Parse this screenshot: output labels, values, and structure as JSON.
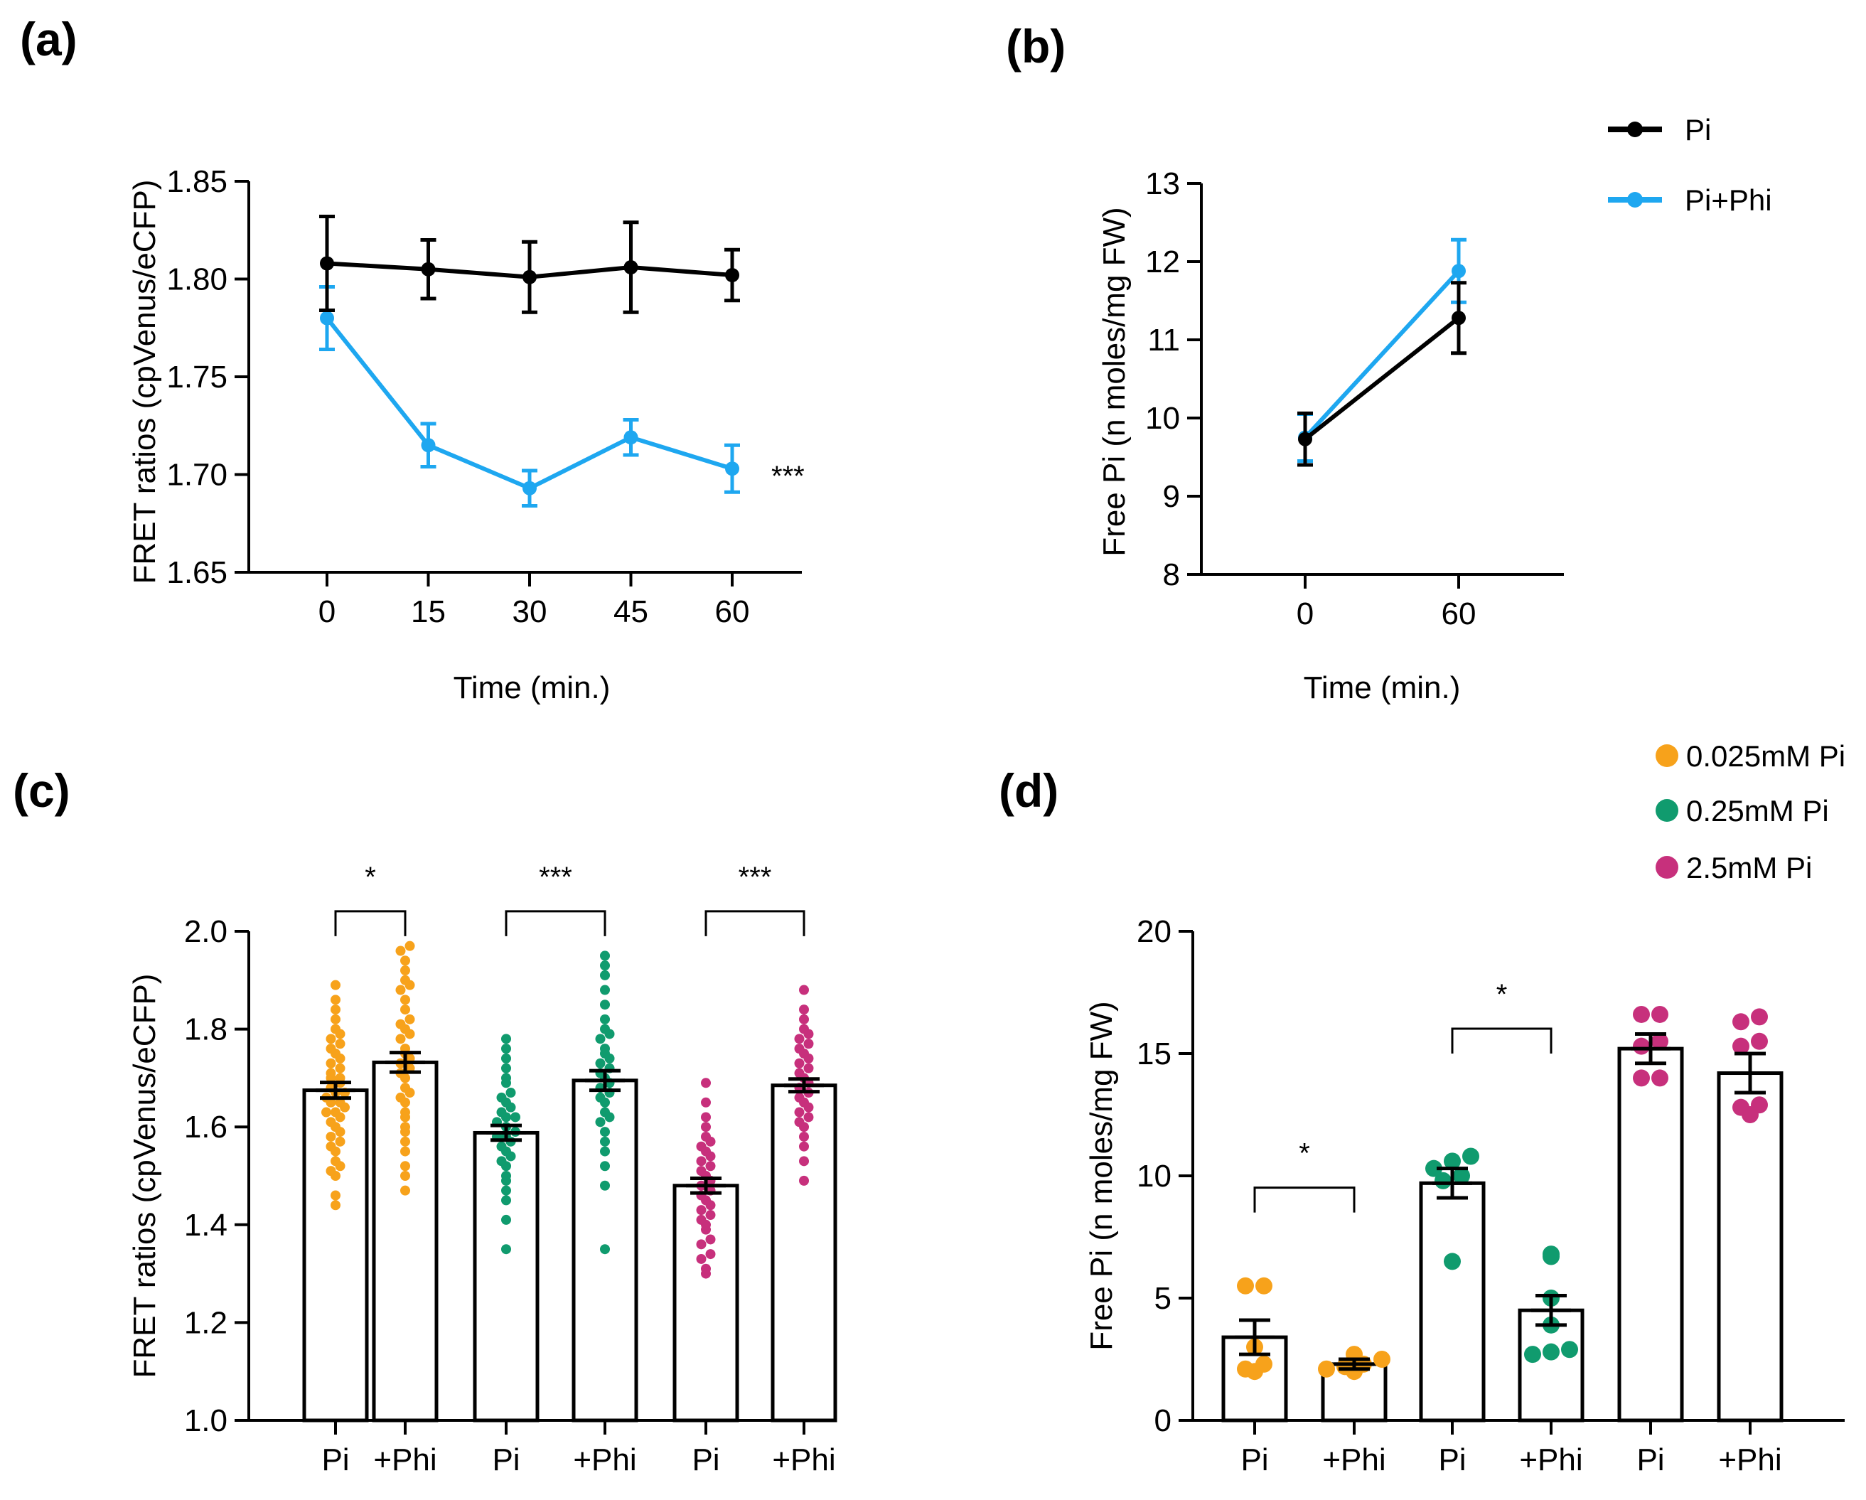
{
  "colors": {
    "pi": "#000000",
    "pi_phi": "#1ea7f0",
    "c0025": "#f7a21b",
    "c025": "#109b6e",
    "c25": "#c7307c",
    "axis": "#000000"
  },
  "chart_data": [
    {
      "panel": "(a)",
      "type": "line",
      "xlabel": "Time (min.)",
      "ylabel": "FRET ratios (cpVenus/eCFP)",
      "x": [
        0,
        15,
        30,
        45,
        60
      ],
      "xticks": [
        "0",
        "15",
        "30",
        "45",
        "60"
      ],
      "ylim": [
        1.65,
        1.85
      ],
      "yticks": [
        "1.65",
        "1.70",
        "1.75",
        "1.80",
        "1.85"
      ],
      "series": [
        {
          "name": "Pi",
          "color": "pi",
          "values": [
            1.808,
            1.805,
            1.801,
            1.806,
            1.802
          ],
          "err": [
            0.024,
            0.015,
            0.018,
            0.023,
            0.013
          ]
        },
        {
          "name": "Pi+Phi",
          "color": "pi_phi",
          "values": [
            1.78,
            1.715,
            1.693,
            1.719,
            1.703
          ],
          "err": [
            0.016,
            0.011,
            0.009,
            0.009,
            0.012
          ]
        }
      ],
      "annotation": "***"
    },
    {
      "panel": "(b)",
      "type": "line",
      "xlabel": "Time (min.)",
      "ylabel": "Free Pi (n moles/mg FW)",
      "x": [
        0,
        60
      ],
      "xticks": [
        "0",
        "60"
      ],
      "ylim": [
        8,
        13
      ],
      "yticks": [
        "8",
        "9",
        "10",
        "11",
        "12",
        "13"
      ],
      "series": [
        {
          "name": "Pi",
          "color": "pi",
          "values": [
            9.73,
            11.28
          ],
          "err": [
            0.33,
            0.45
          ]
        },
        {
          "name": "Pi+Phi",
          "color": "pi_phi",
          "values": [
            9.75,
            11.88
          ],
          "err": [
            0.3,
            0.4
          ]
        }
      ],
      "legend": [
        "Pi",
        "Pi+Phi"
      ]
    },
    {
      "panel": "(c)",
      "type": "bar",
      "ylabel": "FRET ratios (cpVenus/eCFP)",
      "categories": [
        "Pi",
        "+Phi",
        "Pi",
        "+Phi",
        "Pi",
        "+Phi"
      ],
      "ylim": [
        1.0,
        2.0
      ],
      "yticks": [
        "1.0",
        "1.2",
        "1.4",
        "1.6",
        "1.8",
        "2.0"
      ],
      "values": [
        1.675,
        1.732,
        1.588,
        1.695,
        1.48,
        1.685
      ],
      "err": [
        0.016,
        0.02,
        0.015,
        0.02,
        0.015,
        0.013
      ],
      "groups": [
        "c0025",
        "c0025",
        "c025",
        "c025",
        "c25",
        "c25"
      ],
      "points": [
        [
          1.44,
          1.46,
          1.5,
          1.51,
          1.52,
          1.53,
          1.55,
          1.56,
          1.57,
          1.58,
          1.59,
          1.6,
          1.61,
          1.62,
          1.63,
          1.63,
          1.64,
          1.65,
          1.65,
          1.66,
          1.67,
          1.67,
          1.68,
          1.69,
          1.7,
          1.7,
          1.71,
          1.72,
          1.73,
          1.74,
          1.75,
          1.76,
          1.77,
          1.78,
          1.79,
          1.8,
          1.82,
          1.84,
          1.86,
          1.89
        ],
        [
          1.47,
          1.5,
          1.52,
          1.55,
          1.57,
          1.59,
          1.6,
          1.62,
          1.63,
          1.65,
          1.66,
          1.67,
          1.68,
          1.7,
          1.71,
          1.72,
          1.73,
          1.74,
          1.75,
          1.76,
          1.78,
          1.79,
          1.8,
          1.81,
          1.82,
          1.84,
          1.86,
          1.88,
          1.89,
          1.9,
          1.92,
          1.94,
          1.96,
          1.97
        ],
        [
          1.35,
          1.41,
          1.45,
          1.47,
          1.49,
          1.5,
          1.52,
          1.53,
          1.54,
          1.55,
          1.56,
          1.57,
          1.58,
          1.58,
          1.59,
          1.6,
          1.61,
          1.62,
          1.62,
          1.63,
          1.64,
          1.65,
          1.66,
          1.67,
          1.69,
          1.7,
          1.72,
          1.74,
          1.76,
          1.78
        ],
        [
          1.35,
          1.48,
          1.52,
          1.55,
          1.57,
          1.59,
          1.61,
          1.62,
          1.63,
          1.65,
          1.66,
          1.67,
          1.68,
          1.69,
          1.7,
          1.71,
          1.72,
          1.73,
          1.74,
          1.75,
          1.76,
          1.78,
          1.79,
          1.8,
          1.82,
          1.85,
          1.88,
          1.91,
          1.93,
          1.95
        ],
        [
          1.3,
          1.31,
          1.33,
          1.34,
          1.36,
          1.37,
          1.39,
          1.4,
          1.41,
          1.42,
          1.43,
          1.44,
          1.45,
          1.46,
          1.47,
          1.48,
          1.49,
          1.5,
          1.51,
          1.52,
          1.53,
          1.54,
          1.55,
          1.56,
          1.57,
          1.58,
          1.6,
          1.62,
          1.65,
          1.69
        ],
        [
          1.49,
          1.53,
          1.56,
          1.58,
          1.6,
          1.61,
          1.62,
          1.63,
          1.64,
          1.65,
          1.66,
          1.67,
          1.68,
          1.69,
          1.7,
          1.71,
          1.72,
          1.73,
          1.74,
          1.75,
          1.76,
          1.77,
          1.78,
          1.79,
          1.8,
          1.82,
          1.84,
          1.88
        ]
      ],
      "significance": [
        {
          "pair": [
            0,
            1
          ],
          "label": "*",
          "y": 1.99
        },
        {
          "pair": [
            2,
            3
          ],
          "label": "***",
          "y": 1.99
        },
        {
          "pair": [
            4,
            5
          ],
          "label": "***",
          "y": 1.99
        }
      ]
    },
    {
      "panel": "(d)",
      "type": "bar",
      "ylabel": "Free Pi (n moles/mg FW)",
      "categories": [
        "Pi",
        "+Phi",
        "Pi",
        "+Phi",
        "Pi",
        "+Phi"
      ],
      "ylim": [
        0,
        20
      ],
      "yticks": [
        "0",
        "5",
        "10",
        "15",
        "20"
      ],
      "values": [
        3.4,
        2.3,
        9.7,
        4.5,
        15.2,
        14.2
      ],
      "err": [
        0.7,
        0.2,
        0.6,
        0.6,
        0.6,
        0.8
      ],
      "groups": [
        "c0025",
        "c0025",
        "c025",
        "c025",
        "c25",
        "c25"
      ],
      "points": [
        [
          5.5,
          5.5,
          3.0,
          2.1,
          2.0,
          2.3
        ],
        [
          2.7,
          2.5,
          2.3,
          2.2,
          2.1,
          2.0
        ],
        [
          10.8,
          10.6,
          10.3,
          10.0,
          9.8,
          6.5
        ],
        [
          6.8,
          6.7,
          5.0,
          3.9,
          2.9,
          2.8,
          2.7
        ],
        [
          16.6,
          16.6,
          15.5,
          15.3,
          14.0,
          14.0
        ],
        [
          16.5,
          16.3,
          15.5,
          15.3,
          12.9,
          12.8,
          12.5
        ]
      ],
      "significance": [
        {
          "pair": [
            0,
            1
          ],
          "label": "*",
          "y": 8.5
        },
        {
          "pair": [
            2,
            3
          ],
          "label": "*",
          "y": 15.0
        }
      ],
      "legend": [
        "0.025mM Pi",
        "0.25mM Pi",
        "2.5mM Pi"
      ]
    }
  ]
}
